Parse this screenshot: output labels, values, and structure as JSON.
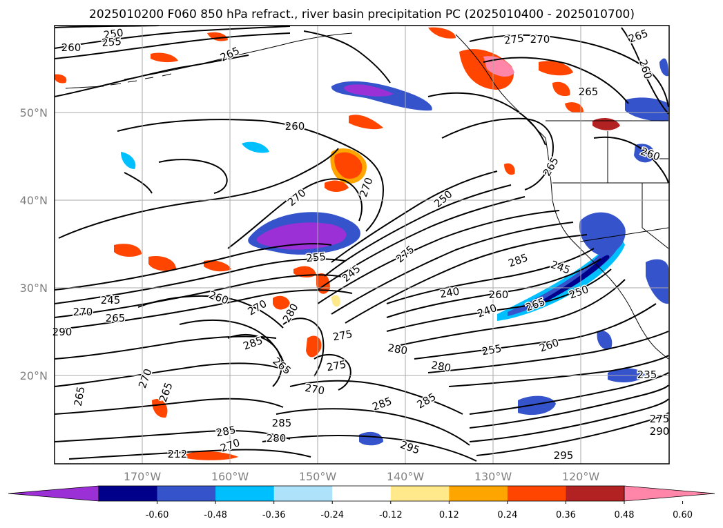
{
  "title": "2025010200 F060 850 hPa refract., river basin precipitation PC (2025010400 - 2025010700)",
  "map": {
    "lat_labels": [
      "50°N",
      "40°N",
      "30°N",
      "20°N"
    ],
    "lon_labels": [
      "170°W",
      "160°W",
      "150°W",
      "140°W",
      "130°W",
      "120°W"
    ]
  },
  "colorbar": {
    "colors": [
      "#9b30d6",
      "#00008b",
      "#3554cc",
      "#00bfff",
      "#aee1fa",
      "#ffffff",
      "#ffe98a",
      "#ffa500",
      "#ff4500",
      "#b22222",
      "#ff85a9"
    ],
    "ticks": [
      "-0.60",
      "-0.48",
      "-0.36",
      "-0.24",
      "-0.12",
      "0.12",
      "0.24",
      "0.36",
      "0.48",
      "0.60"
    ]
  },
  "contour_labels": [
    "250",
    "255",
    "260",
    "265",
    "260",
    "275",
    "270",
    "265",
    "260",
    "265",
    "260",
    "265",
    "270",
    "270",
    "250",
    "255",
    "275",
    "285",
    "245",
    "245",
    "240",
    "260",
    "250",
    "265",
    "240",
    "245",
    "270",
    "265",
    "260",
    "270",
    "285",
    "280",
    "275",
    "280",
    "265",
    "270",
    "255",
    "260",
    "280",
    "275",
    "270",
    "265",
    "285",
    "285",
    "285",
    "280",
    "285",
    "295",
    "295",
    "270",
    "235",
    "275",
    "290",
    "212",
    "265",
    "290"
  ]
}
